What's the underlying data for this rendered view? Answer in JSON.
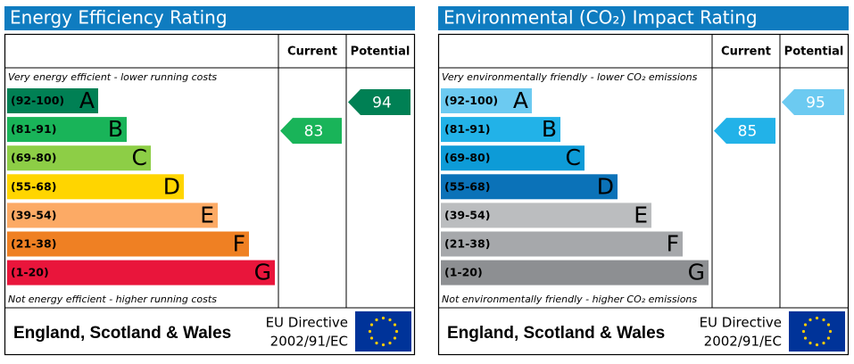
{
  "panels": [
    {
      "title": "Energy Efficiency Rating",
      "columns": {
        "current": "Current",
        "potential": "Potential"
      },
      "top_note": "Very energy efficient - lower running costs",
      "bottom_note": "Not energy efficient - higher running costs",
      "bands": [
        {
          "range": "(92-100)",
          "letter": "A"
        },
        {
          "range": "(81-91)",
          "letter": "B"
        },
        {
          "range": "(69-80)",
          "letter": "C"
        },
        {
          "range": "(55-68)",
          "letter": "D"
        },
        {
          "range": "(39-54)",
          "letter": "E"
        },
        {
          "range": "(21-38)",
          "letter": "F"
        },
        {
          "range": "(1-20)",
          "letter": "G"
        }
      ],
      "current": 83,
      "potential": 94,
      "footer": {
        "region": "England, Scotland & Wales",
        "directive": "EU Directive",
        "directive_code": "2002/91/EC"
      }
    },
    {
      "title": "Environmental (CO₂) Impact Rating",
      "columns": {
        "current": "Current",
        "potential": "Potential"
      },
      "top_note": "Very environmentally friendly - lower CO₂ emissions",
      "bottom_note": "Not environmentally friendly - higher CO₂ emissions",
      "bands": [
        {
          "range": "(92-100)",
          "letter": "A"
        },
        {
          "range": "(81-91)",
          "letter": "B"
        },
        {
          "range": "(69-80)",
          "letter": "C"
        },
        {
          "range": "(55-68)",
          "letter": "D"
        },
        {
          "range": "(39-54)",
          "letter": "E"
        },
        {
          "range": "(21-38)",
          "letter": "F"
        },
        {
          "range": "(1-20)",
          "letter": "G"
        }
      ],
      "current": 85,
      "potential": 95,
      "footer": {
        "region": "England, Scotland & Wales",
        "directive": "EU Directive",
        "directive_code": "2002/91/EC"
      }
    }
  ]
}
